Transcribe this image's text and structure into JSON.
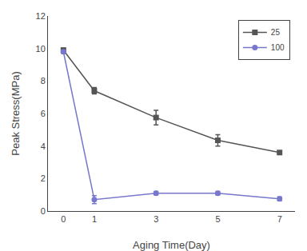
{
  "chart_data": {
    "type": "line",
    "x": [
      0,
      1,
      3,
      5,
      7
    ],
    "series": [
      {
        "name": "25",
        "color": "#555555",
        "marker": "square",
        "values": [
          9.9,
          7.4,
          5.75,
          4.35,
          3.6
        ],
        "errors": [
          0.12,
          0.2,
          0.45,
          0.35,
          0.0
        ]
      },
      {
        "name": "100",
        "color": "#7777cc",
        "marker": "circle",
        "values": [
          9.8,
          0.7,
          1.1,
          1.1,
          0.75
        ],
        "errors": [
          0.1,
          0.25,
          0.1,
          0.1,
          0.12
        ]
      }
    ],
    "xlabel": "Aging Time(Day)",
    "ylabel": "Peak Stress(MPa)",
    "xlim": [
      -0.5,
      7.5
    ],
    "xticks": [
      0,
      1,
      3,
      5,
      7
    ],
    "ylim": [
      0,
      12
    ],
    "yticks": [
      0,
      2,
      4,
      6,
      8,
      10,
      12
    ],
    "grid": false,
    "legend": "upper right"
  }
}
